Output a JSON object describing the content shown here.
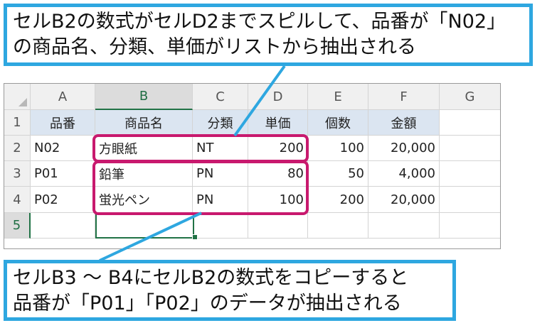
{
  "spreadsheet": {
    "columns": [
      "A",
      "B",
      "C",
      "D",
      "E",
      "F",
      "G"
    ],
    "rows": [
      "1",
      "2",
      "3",
      "4",
      "5"
    ],
    "header_row": [
      "品番",
      "商品名",
      "分類",
      "単価",
      "個数",
      "金額"
    ],
    "data_rows": [
      [
        "N02",
        "方眼紙",
        "NT",
        "200",
        "100",
        "20,000"
      ],
      [
        "P01",
        "鉛筆",
        "PN",
        "80",
        "50",
        "4,000"
      ],
      [
        "P02",
        "蛍光ペン",
        "PN",
        "100",
        "200",
        "20,000"
      ]
    ],
    "selected_cell": "B5"
  },
  "callouts": {
    "top": {
      "line1": "セルB2の数式がセルD2までスピルして、品番が「N02」",
      "line2": "の商品名、分類、単価がリストから抽出される"
    },
    "bottom": {
      "line1": "セルB3 〜 B4にセルB2の数式をコピーすると",
      "line2": "品番が「P01」「P02」のデータが抽出される"
    }
  },
  "colors": {
    "callout_border": "#2ea7e0",
    "highlight_border": "#c8196e",
    "header_fill": "#dbe5f1",
    "selection_green": "#217346"
  }
}
